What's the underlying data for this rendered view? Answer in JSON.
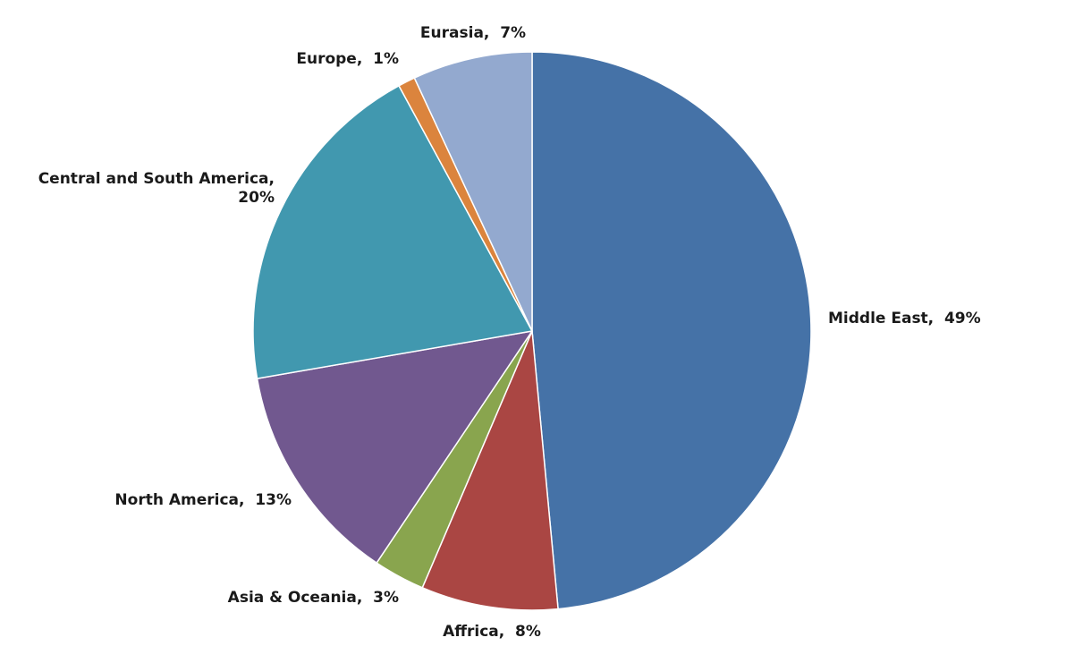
{
  "chart_data": {
    "type": "pie",
    "start_angle_deg": 0,
    "direction": "clockwise",
    "slices": [
      {
        "label": "Middle East, 49%",
        "lines": [
          "Middle East,  49%"
        ],
        "value": 49,
        "color": "#4572a7"
      },
      {
        "label": "Affrica, 8%",
        "lines": [
          "Affrica,  8%"
        ],
        "value": 8,
        "color": "#aa4643"
      },
      {
        "label": "Asia & Oceania, 3%",
        "lines": [
          "Asia & Oceania,  3%"
        ],
        "value": 3,
        "color": "#89a54e"
      },
      {
        "label": "North America, 13%",
        "lines": [
          "North America,  13%"
        ],
        "value": 13,
        "color": "#71588f"
      },
      {
        "label": "Central and South America, 20%",
        "lines": [
          "Central and South America,",
          "20%"
        ],
        "value": 20,
        "color": "#4198af"
      },
      {
        "label": "Europe, 1%",
        "lines": [
          "Europe,  1%"
        ],
        "value": 1,
        "color": "#db843d"
      },
      {
        "label": "Eurasia, 7%",
        "lines": [
          "Eurasia,  7%"
        ],
        "value": 7,
        "color": "#93a9cf"
      }
    ]
  }
}
